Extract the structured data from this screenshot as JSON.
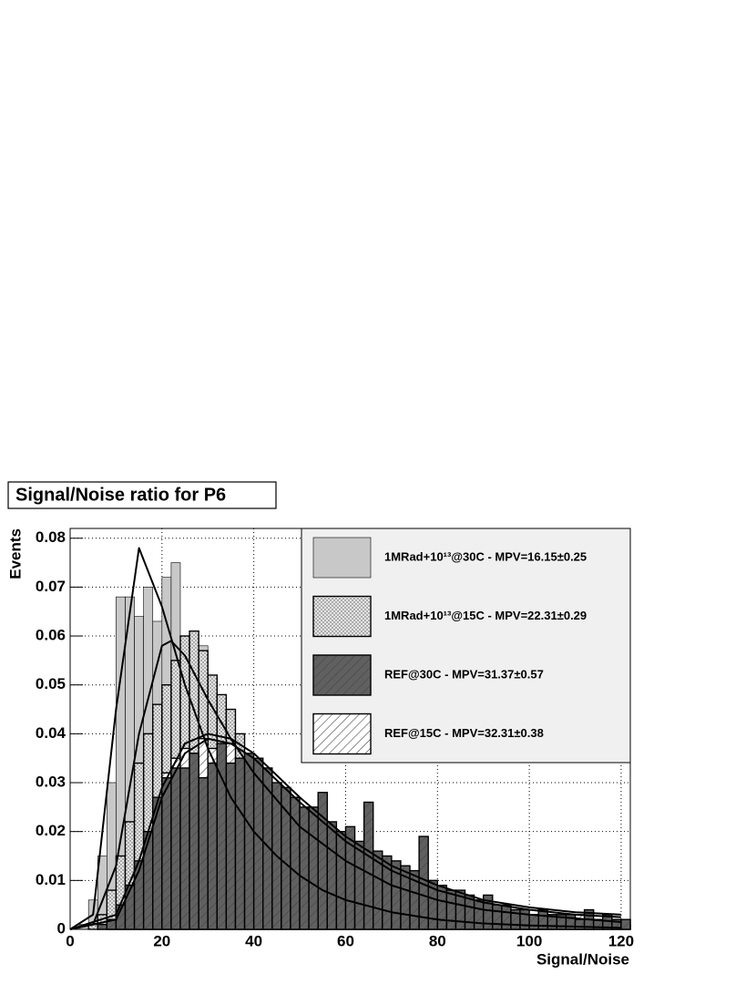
{
  "chart_data": {
    "type": "histogram",
    "title": "Signal/Noise ratio for P6",
    "x_label": "Signal/Noise",
    "y_label": "Events",
    "xlim": [
      0,
      122
    ],
    "ylim": [
      0,
      0.082
    ],
    "xticks": [
      0,
      20,
      40,
      60,
      80,
      100,
      120
    ],
    "yticks": [
      0,
      0.01,
      0.02,
      0.03,
      0.04,
      0.05,
      0.06,
      0.07,
      0.08
    ],
    "grid": true,
    "legend": "upper right",
    "bins": [
      0,
      2,
      4,
      6,
      8,
      10,
      12,
      14,
      16,
      18,
      20,
      22,
      24,
      26,
      28,
      30,
      32,
      34,
      36,
      38,
      40,
      42,
      44,
      46,
      48,
      50,
      52,
      54,
      56,
      58,
      60,
      62,
      64,
      66,
      68,
      70,
      72,
      74,
      76,
      78,
      80,
      82,
      84,
      86,
      88,
      90,
      92,
      94,
      96,
      98,
      100,
      102,
      104,
      106,
      108,
      110,
      112,
      114,
      116,
      118,
      120,
      122
    ],
    "series": [
      {
        "name": "1MRad+10¹³@30C - MPV=16.15±0.25",
        "color": "#c8c8c8",
        "fill": "solid",
        "values": [
          0,
          0.001,
          0.006,
          0.015,
          0.03,
          0.068,
          0.068,
          0.064,
          0.07,
          0.063,
          0.072,
          0.075,
          0.06,
          0.055,
          0.058,
          0.043,
          0.036,
          0.03,
          0.025,
          0.02,
          0.016,
          0.013,
          0.01,
          0.008,
          0.007,
          0.006,
          0.005,
          0.004,
          0.004,
          0.003,
          0.003,
          0.003,
          0.002,
          0.002,
          0.002,
          0.002,
          0.002,
          0.001,
          0.001,
          0.001,
          0.001,
          0.001,
          0.001,
          0.001,
          0.001,
          0.001,
          0.001,
          0.001,
          0.001,
          0.001,
          0.001,
          0.001,
          0.001,
          0.001,
          0.001,
          0,
          0,
          0,
          0,
          0,
          0
        ],
        "fit": {
          "x": [
            0,
            5,
            10,
            15,
            20,
            25,
            30,
            35,
            40,
            45,
            50,
            55,
            60,
            70,
            80,
            90,
            100,
            120
          ],
          "y": [
            0,
            0.003,
            0.045,
            0.078,
            0.066,
            0.05,
            0.037,
            0.027,
            0.02,
            0.015,
            0.011,
            0.008,
            0.006,
            0.0035,
            0.002,
            0.0012,
            0.0008,
            0.0003
          ]
        }
      },
      {
        "name": "1MRad+10¹³@15C - MPV=22.31±0.29",
        "color": "#e4e4e4",
        "fill": "dots",
        "values": [
          0,
          0,
          0.001,
          0.003,
          0.008,
          0.015,
          0.022,
          0.034,
          0.04,
          0.046,
          0.05,
          0.055,
          0.06,
          0.061,
          0.057,
          0.052,
          0.048,
          0.045,
          0.04,
          0.035,
          0.03,
          0.027,
          0.024,
          0.021,
          0.018,
          0.016,
          0.014,
          0.012,
          0.01,
          0.009,
          0.008,
          0.007,
          0.006,
          0.005,
          0.005,
          0.004,
          0.004,
          0.003,
          0.003,
          0.003,
          0.002,
          0.002,
          0.002,
          0.002,
          0.002,
          0.002,
          0.002,
          0.002,
          0.002,
          0.002,
          0.001,
          0.001,
          0.001,
          0.001,
          0.001,
          0.001,
          0.001,
          0.001,
          0.001,
          0.001,
          0.001
        ],
        "fit": {
          "x": [
            0,
            5,
            10,
            15,
            20,
            22,
            25,
            30,
            35,
            40,
            50,
            60,
            70,
            80,
            90,
            100,
            120
          ],
          "y": [
            0,
            0.001,
            0.013,
            0.04,
            0.058,
            0.059,
            0.056,
            0.047,
            0.039,
            0.032,
            0.021,
            0.014,
            0.009,
            0.006,
            0.004,
            0.003,
            0.0015
          ]
        }
      },
      {
        "name": "REF@30C - MPV=31.37±0.57",
        "color": "#606060",
        "fill": "solid",
        "values": [
          0,
          0,
          0,
          0.001,
          0.002,
          0.005,
          0.009,
          0.014,
          0.02,
          0.027,
          0.031,
          0.033,
          0.033,
          0.036,
          0.031,
          0.034,
          0.038,
          0.034,
          0.035,
          0.036,
          0.035,
          0.033,
          0.03,
          0.029,
          0.027,
          0.025,
          0.025,
          0.028,
          0.022,
          0.02,
          0.021,
          0.018,
          0.026,
          0.016,
          0.015,
          0.014,
          0.013,
          0.012,
          0.019,
          0.01,
          0.009,
          0.008,
          0.008,
          0.007,
          0.006,
          0.007,
          0.005,
          0.005,
          0.004,
          0.004,
          0.003,
          0.004,
          0.003,
          0.003,
          0.003,
          0.002,
          0.004,
          0.002,
          0.003,
          0.002,
          0.002
        ],
        "fit": {
          "x": [
            0,
            10,
            15,
            20,
            25,
            30,
            35,
            40,
            50,
            60,
            70,
            80,
            90,
            100,
            110,
            120
          ],
          "y": [
            0,
            0.002,
            0.012,
            0.027,
            0.036,
            0.039,
            0.038,
            0.035,
            0.026,
            0.018,
            0.012,
            0.008,
            0.0055,
            0.004,
            0.003,
            0.0025
          ]
        }
      },
      {
        "name": "REF@15C - MPV=32.31±0.38",
        "color": "#ffffff",
        "fill": "hatch",
        "values": [
          0,
          0,
          0,
          0,
          0.002,
          0.004,
          0.008,
          0.013,
          0.02,
          0.026,
          0.032,
          0.035,
          0.037,
          0.036,
          0.039,
          0.037,
          0.036,
          0.038,
          0.034,
          0.033,
          0.031,
          0.03,
          0.029,
          0.028,
          0.026,
          0.024,
          0.022,
          0.021,
          0.02,
          0.019,
          0.017,
          0.016,
          0.015,
          0.014,
          0.013,
          0.012,
          0.011,
          0.01,
          0.009,
          0.008,
          0.008,
          0.007,
          0.006,
          0.006,
          0.005,
          0.005,
          0.004,
          0.004,
          0.004,
          0.003,
          0.003,
          0.003,
          0.003,
          0.003,
          0.002,
          0.003,
          0.002,
          0.002,
          0.002,
          0.002,
          0.002
        ],
        "fit": {
          "x": [
            0,
            10,
            15,
            20,
            25,
            30,
            35,
            40,
            50,
            60,
            70,
            80,
            90,
            100,
            110,
            120
          ],
          "y": [
            0,
            0.003,
            0.014,
            0.029,
            0.038,
            0.04,
            0.039,
            0.036,
            0.027,
            0.019,
            0.013,
            0.009,
            0.006,
            0.0045,
            0.0035,
            0.003
          ]
        }
      }
    ]
  }
}
